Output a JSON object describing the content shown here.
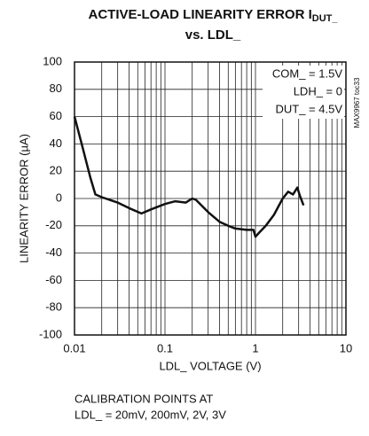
{
  "chart_data": {
    "type": "line",
    "title": "ACTIVE-LOAD LINEARITY ERROR I",
    "title_subscript": "DUT_",
    "title_line2": "vs. LDL_",
    "x_label": "LDL_ VOLTAGE (V)",
    "y_label": "LINEARITY ERROR (µA)",
    "annotations": [
      "COM_ = 1.5V",
      "LDH_ = 0",
      "DUT_ = 4.5V"
    ],
    "side_note": "MAX9967 toc33",
    "footnote": [
      "CALIBRATION POINTS AT",
      "LDL_ = 20mV, 200mV, 2V, 3V"
    ],
    "log_x": true,
    "grid": true,
    "xlim": [
      0.01,
      10
    ],
    "xticks": [
      0.01,
      0.1,
      1,
      10
    ],
    "ylim": [
      -100,
      100
    ],
    "yticks": [
      100,
      80,
      60,
      40,
      20,
      0,
      -20,
      -40,
      -60,
      -80,
      -100
    ],
    "x": [
      0.01,
      0.012,
      0.015,
      0.017,
      0.02,
      0.03,
      0.04,
      0.055,
      0.07,
      0.1,
      0.13,
      0.17,
      0.2,
      0.22,
      0.3,
      0.4,
      0.5,
      0.6,
      0.8,
      0.95,
      1.0,
      1.1,
      1.3,
      1.6,
      2.0,
      2.3,
      2.6,
      2.9,
      3.1,
      3.4
    ],
    "series": [
      {
        "name": "linearity error",
        "color": "#111111",
        "values": [
          60,
          40,
          15,
          3,
          1,
          -3,
          -7,
          -11,
          -8,
          -4,
          -2,
          -3,
          0,
          -1,
          -10,
          -17,
          -20,
          -22,
          -23,
          -23,
          -28,
          -25,
          -20,
          -12,
          0,
          5,
          3,
          8,
          2,
          -5
        ]
      }
    ]
  }
}
